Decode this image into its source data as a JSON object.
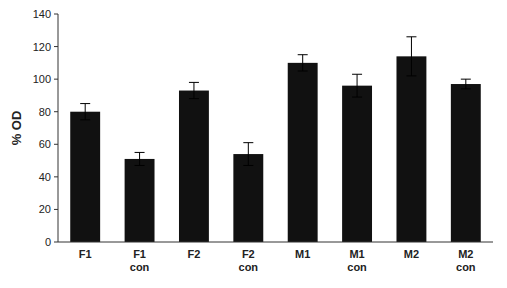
{
  "chart_data": {
    "type": "bar",
    "categories": [
      "F1",
      "F1\ncon",
      "F2",
      "F2\ncon",
      "M1",
      "M1\ncon",
      "M2",
      "M2\ncon"
    ],
    "values": [
      80,
      51,
      93,
      54,
      110,
      96,
      114,
      97
    ],
    "errors": [
      5,
      4,
      5,
      7,
      5,
      7,
      12,
      3
    ],
    "color": "#111111",
    "ylabel": "% OD",
    "ylim": [
      0,
      140
    ],
    "yticks": [
      0,
      20,
      40,
      60,
      80,
      100,
      120,
      140
    ],
    "grid": false
  }
}
